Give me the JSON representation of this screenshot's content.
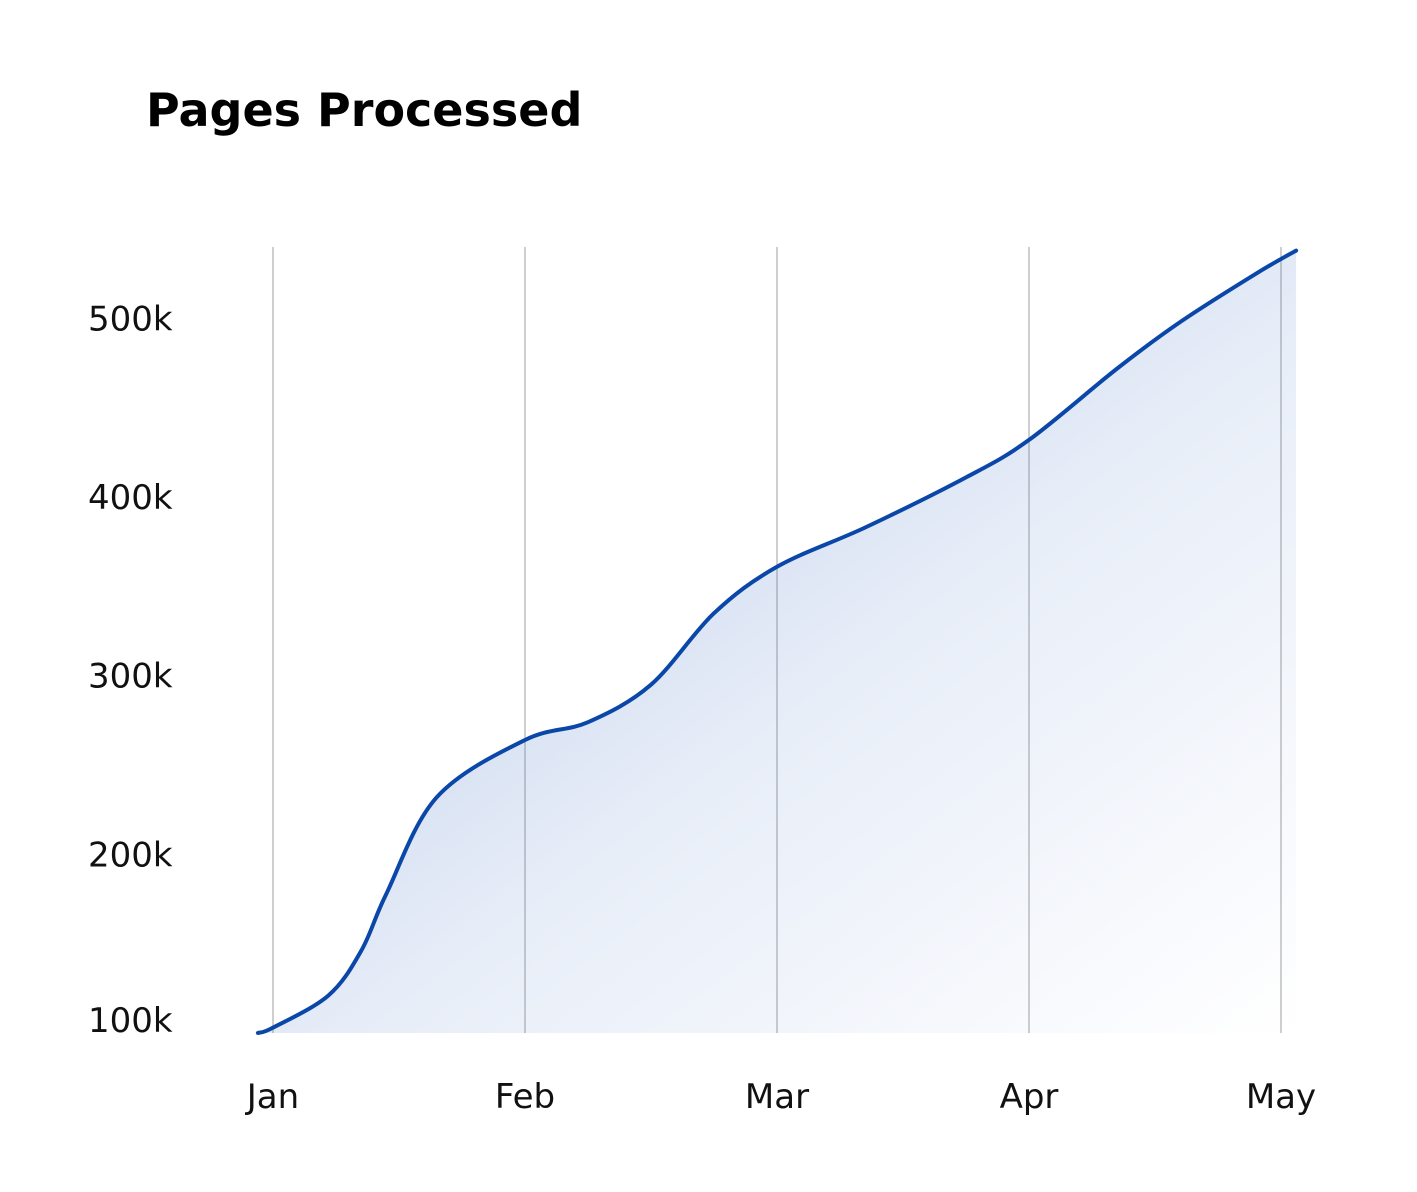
{
  "chart_data": {
    "type": "area",
    "title": "Pages Processed",
    "xlabel": "",
    "ylabel": "",
    "x_ticks": [
      "Jan",
      "Feb",
      "Mar",
      "Apr",
      "May"
    ],
    "y_ticks": [
      {
        "value": 100000,
        "label": "100k"
      },
      {
        "value": 200000,
        "label": "200k"
      },
      {
        "value": 300000,
        "label": "300k"
      },
      {
        "value": 400000,
        "label": "400k"
      },
      {
        "value": 500000,
        "label": "500k"
      }
    ],
    "ylim": [
      100000,
      540000
    ],
    "xlim": [
      -0.06,
      4.06
    ],
    "grid": {
      "vertical": true,
      "horizontal": false
    },
    "legend": "none",
    "series": [
      {
        "color": "#0a47a8",
        "fill_color": "#3a6cc4",
        "points": [
          {
            "x": -0.06,
            "y": 100000
          },
          {
            "x": 0.0,
            "y": 103000
          },
          {
            "x": 0.22,
            "y": 121000
          },
          {
            "x": 0.35,
            "y": 146000
          },
          {
            "x": 0.45,
            "y": 178000
          },
          {
            "x": 0.65,
            "y": 232000
          },
          {
            "x": 1.0,
            "y": 264000
          },
          {
            "x": 1.25,
            "y": 274000
          },
          {
            "x": 1.5,
            "y": 295000
          },
          {
            "x": 1.75,
            "y": 335000
          },
          {
            "x": 2.0,
            "y": 361000
          },
          {
            "x": 2.35,
            "y": 383000
          },
          {
            "x": 2.75,
            "y": 411000
          },
          {
            "x": 3.0,
            "y": 432000
          },
          {
            "x": 3.35,
            "y": 472000
          },
          {
            "x": 3.6,
            "y": 498000
          },
          {
            "x": 3.9,
            "y": 525000
          },
          {
            "x": 4.06,
            "y": 538000
          }
        ]
      }
    ]
  }
}
